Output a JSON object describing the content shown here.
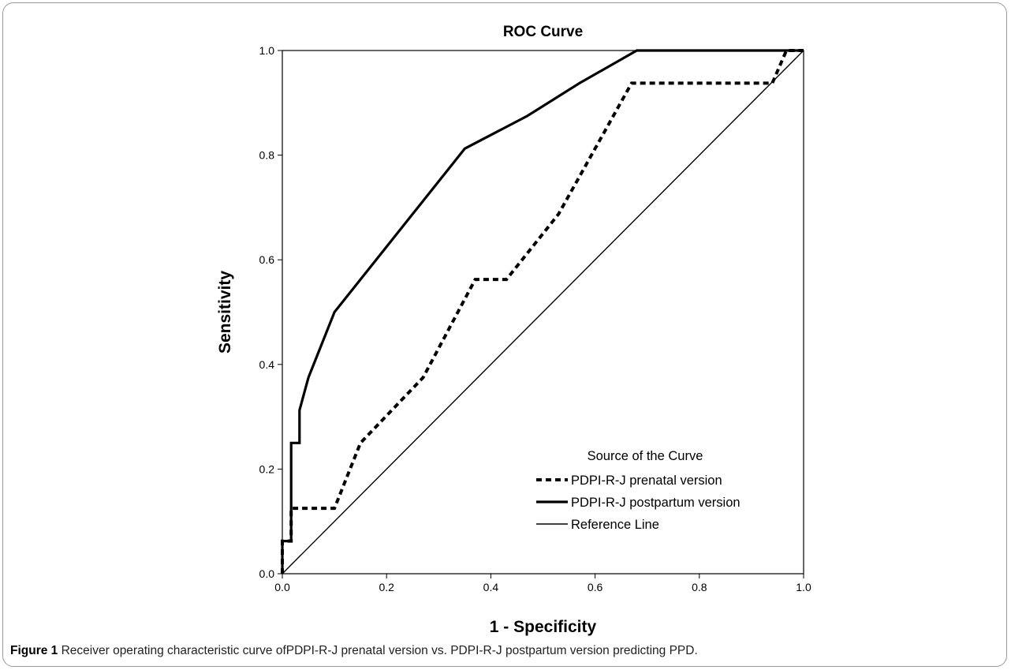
{
  "chart_data": {
    "type": "line",
    "title": "ROC Curve",
    "xlabel": "1 - Specificity",
    "ylabel": "Sensitivity",
    "xlim": [
      0,
      1
    ],
    "ylim": [
      0,
      1
    ],
    "x_ticks": [
      "0.0",
      "0.2",
      "0.4",
      "0.6",
      "0.8",
      "1.0"
    ],
    "y_ticks": [
      "0.0",
      "0.2",
      "0.4",
      "0.6",
      "0.8",
      "1.0"
    ],
    "legend_title": "Source of the Curve",
    "legend_position": "bottom-right",
    "grid": false,
    "series": [
      {
        "name": "PDPI-R-J prenatal version",
        "style": "dashed",
        "x": [
          0.0,
          0.0,
          0.017,
          0.017,
          0.1,
          0.15,
          0.27,
          0.37,
          0.43,
          0.53,
          0.67,
          0.94,
          0.967,
          0.967,
          1.0
        ],
        "y": [
          0.0,
          0.0625,
          0.0625,
          0.125,
          0.125,
          0.25,
          0.375,
          0.5625,
          0.5625,
          0.6875,
          0.9375,
          0.9375,
          1.0,
          1.0,
          1.0
        ]
      },
      {
        "name": "PDPI-R-J postpartum version",
        "style": "solid-thick",
        "x": [
          0.0,
          0.0,
          0.017,
          0.017,
          0.033,
          0.033,
          0.05,
          0.1,
          0.35,
          0.47,
          0.57,
          0.68,
          1.0
        ],
        "y": [
          0.0,
          0.0625,
          0.0625,
          0.25,
          0.25,
          0.3125,
          0.375,
          0.5,
          0.8125,
          0.875,
          0.9375,
          1.0,
          1.0
        ]
      },
      {
        "name": "Reference Line",
        "style": "solid-thin",
        "x": [
          0.0,
          1.0
        ],
        "y": [
          0.0,
          1.0
        ]
      }
    ]
  },
  "caption": {
    "label": "Figure 1",
    "text": " Receiver operating characteristic curve ofPDPI-R-J prenatal version vs. PDPI-R-J postpartum version predicting PPD."
  }
}
